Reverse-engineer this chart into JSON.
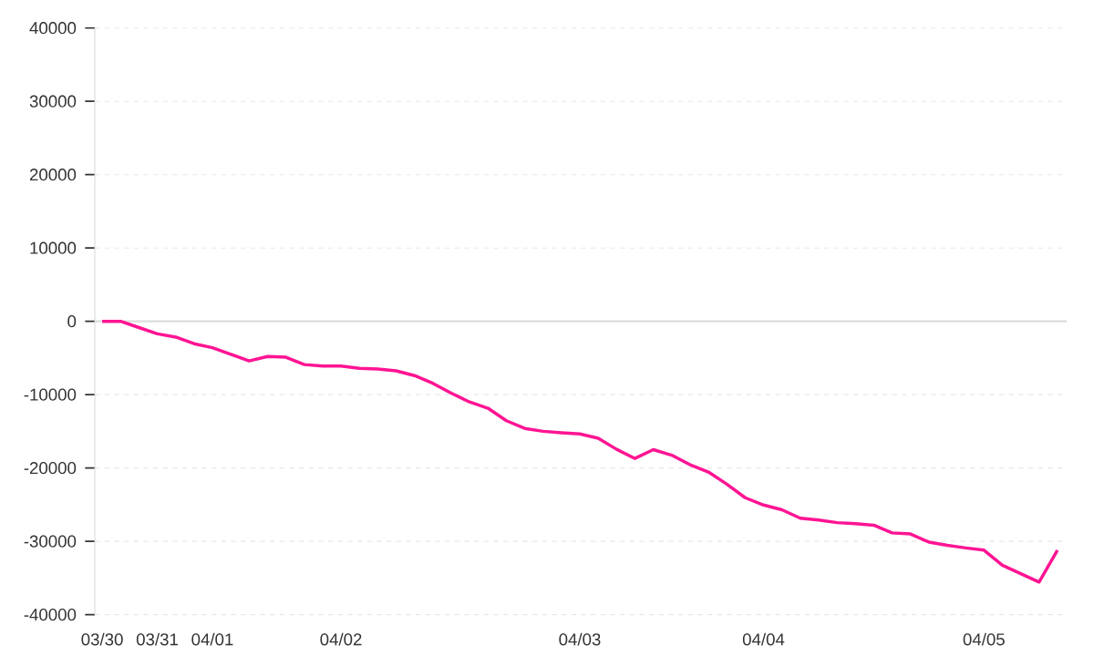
{
  "chart_data": {
    "type": "line",
    "categories": [
      "03/30",
      null,
      null,
      "03/31",
      null,
      null,
      "04/01",
      null,
      null,
      null,
      null,
      null,
      null,
      "04/02",
      null,
      null,
      null,
      null,
      null,
      null,
      null,
      null,
      null,
      null,
      null,
      null,
      "04/03",
      null,
      null,
      null,
      null,
      null,
      null,
      null,
      null,
      null,
      "04/04",
      null,
      null,
      null,
      null,
      null,
      null,
      null,
      null,
      null,
      null,
      null,
      "04/05",
      null,
      null,
      null,
      null
    ],
    "series": [
      {
        "color": "#ff1493",
        "values": [
          0,
          0,
          -850,
          -1700,
          -2150,
          -3050,
          -3600,
          -4500,
          -5400,
          -4800,
          -4900,
          -5900,
          -6100,
          -6100,
          -6400,
          -6500,
          -6750,
          -7400,
          -8450,
          -9800,
          -11000,
          -11850,
          -13550,
          -14600,
          -15000,
          -15200,
          -15350,
          -15950,
          -17450,
          -18700,
          -17500,
          -18250,
          -19550,
          -20550,
          -22200,
          -24050,
          -25050,
          -25700,
          -26850,
          -27100,
          -27450,
          -27600,
          -27800,
          -28850,
          -29000,
          -30100,
          -30550,
          -30900,
          -31200,
          -33250,
          -34400,
          -35550,
          -31200
        ]
      }
    ],
    "ylim": [
      -40000,
      40000
    ],
    "yticks": [
      -40000,
      -30000,
      -20000,
      -10000,
      0,
      10000,
      20000,
      30000,
      40000
    ],
    "grid": "y",
    "ref_lines": [
      {
        "axis": "y",
        "value": 0,
        "color": "#dddddd"
      }
    ],
    "line_style": "solid",
    "marker": "none"
  }
}
